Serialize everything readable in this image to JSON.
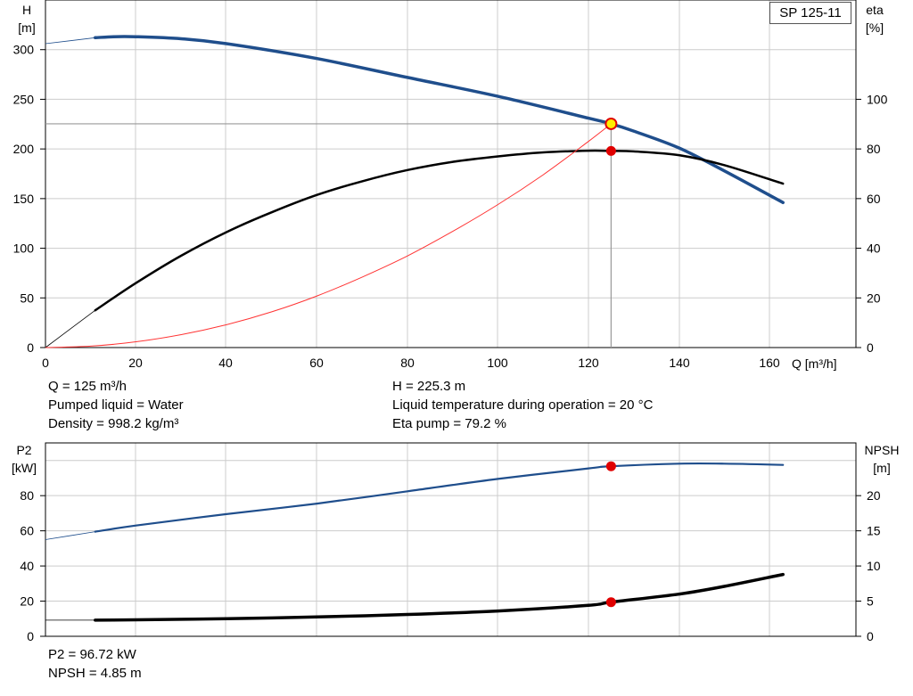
{
  "pump_name": "SP 125-11",
  "info_top": {
    "q": "Q = 125 m³/h",
    "liquid": "Pumped liquid = Water",
    "density": "Density = 998.2 kg/m³",
    "h": "H = 225.3 m",
    "temp": "Liquid temperature during operation = 20 °C",
    "eta": "Eta pump = 79.2 %"
  },
  "info_bottom": {
    "p2": "P2 = 96.72 kW",
    "npsh": "NPSH = 4.85 m"
  },
  "colors": {
    "head": "#1f4e8c",
    "eta": "#000000",
    "system": "#ff3333",
    "point": "#e00000",
    "point_yellow": "#ffee00",
    "grid": "#cccccc"
  },
  "chart_data": [
    {
      "type": "line",
      "xlabel": "Q [m³/h]",
      "ylabel_left": [
        "H",
        "[m]"
      ],
      "ylabel_right": [
        "eta",
        "[%]"
      ],
      "xlim": [
        0,
        178
      ],
      "ylim_left": [
        0,
        350
      ],
      "ylim_right": [
        0,
        140
      ],
      "xticks": [
        0,
        20,
        40,
        60,
        80,
        100,
        120,
        140,
        160
      ],
      "yticks_left": [
        0,
        50,
        100,
        150,
        200,
        250,
        300
      ],
      "yticks_right": [
        0,
        20,
        40,
        60,
        80,
        100
      ],
      "grid": true,
      "series": [
        {
          "id": "head",
          "axis": "left",
          "x": [
            0,
            11,
            15,
            20,
            30,
            40,
            60,
            80,
            100,
            120,
            125,
            130,
            140,
            150,
            163
          ],
          "y": [
            306,
            312,
            313,
            313,
            311,
            306,
            291,
            272,
            253,
            231,
            225.3,
            218,
            201,
            178,
            146
          ],
          "dashed_until": 11
        },
        {
          "id": "eta",
          "axis": "right",
          "x": [
            0,
            11,
            20,
            30,
            40,
            50,
            60,
            70,
            80,
            90,
            100,
            110,
            120,
            125,
            130,
            140,
            150,
            163
          ],
          "y": [
            0,
            15,
            26,
            37,
            46.5,
            54.5,
            61.5,
            67,
            71.5,
            74.8,
            77,
            78.6,
            79.3,
            79.2,
            79,
            77.5,
            73.5,
            66
          ],
          "dashed_until": 11
        },
        {
          "id": "system",
          "axis": "left",
          "x": [
            0,
            10,
            20,
            30,
            40,
            50,
            60,
            70,
            80,
            90,
            100,
            110,
            120,
            125
          ],
          "y": [
            0,
            1.4,
            5.8,
            13,
            23,
            36,
            52,
            71,
            92.3,
            117,
            144,
            174,
            207.6,
            225.3
          ]
        }
      ],
      "operating_point": {
        "q": 125,
        "h": 225.3,
        "eta": 79.2
      }
    },
    {
      "type": "line",
      "ylabel_left": [
        "P2",
        "[kW]"
      ],
      "ylabel_right": [
        "NPSH",
        "[m]"
      ],
      "xlim": [
        0,
        178
      ],
      "ylim_left": [
        0,
        110
      ],
      "ylim_right": [
        0,
        27.5
      ],
      "xticks": [
        0,
        20,
        40,
        60,
        80,
        100,
        120,
        140,
        160
      ],
      "yticks_left": [
        0,
        20,
        40,
        60,
        80
      ],
      "yticks_right": [
        0,
        5,
        10,
        15,
        20
      ],
      "grid": true,
      "series": [
        {
          "id": "p2",
          "axis": "left",
          "x": [
            0,
            11,
            20,
            40,
            60,
            80,
            100,
            120,
            125,
            140,
            150,
            163
          ],
          "y": [
            55,
            59.5,
            63,
            69.5,
            75.5,
            82.5,
            89.5,
            95.5,
            96.72,
            98.2,
            98.2,
            97.5
          ],
          "dashed_until": 11
        },
        {
          "id": "npsh",
          "axis": "right",
          "x": [
            0,
            11,
            20,
            40,
            60,
            80,
            100,
            120,
            125,
            140,
            150,
            163
          ],
          "y": [
            2.3,
            2.3,
            2.35,
            2.5,
            2.75,
            3.1,
            3.6,
            4.4,
            4.85,
            6.0,
            7.1,
            8.8
          ],
          "dashed_until": 11
        }
      ],
      "operating_point": {
        "q": 125,
        "p2": 96.72,
        "npsh": 4.85
      }
    }
  ]
}
